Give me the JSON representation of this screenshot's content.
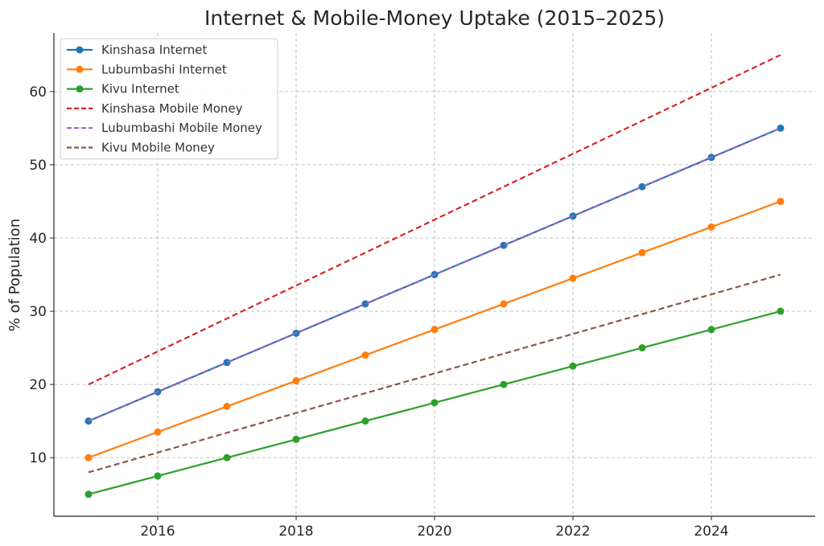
{
  "chart_data": {
    "type": "line",
    "title": "Internet & Mobile-Money Uptake (2015–2025)",
    "xlabel": "",
    "ylabel": "% of Population",
    "x": [
      2015,
      2016,
      2017,
      2018,
      2019,
      2020,
      2021,
      2022,
      2023,
      2024,
      2025
    ],
    "xlim": [
      2014.5,
      2025.5
    ],
    "ylim": [
      2.0,
      68.0
    ],
    "xticks": [
      2016,
      2018,
      2020,
      2022,
      2024
    ],
    "yticks": [
      10,
      20,
      30,
      40,
      50,
      60
    ],
    "grid": true,
    "legend_position": "top-left",
    "series": [
      {
        "name": "Kinshasa Internet",
        "color": "#1f77b4",
        "style": "solid",
        "marker": "circle",
        "values": [
          15,
          19,
          23,
          27,
          31,
          35,
          39,
          43,
          47,
          51,
          55
        ]
      },
      {
        "name": "Lubumbashi Internet",
        "color": "#ff7f0e",
        "style": "solid",
        "marker": "circle",
        "values": [
          10,
          13.5,
          17,
          20.5,
          24,
          27.5,
          31,
          34.5,
          38,
          41.5,
          45
        ]
      },
      {
        "name": "Kivu Internet",
        "color": "#2ca02c",
        "style": "solid",
        "marker": "circle",
        "values": [
          5,
          7.5,
          10,
          12.5,
          15,
          17.5,
          20,
          22.5,
          25,
          27.5,
          30
        ]
      },
      {
        "name": "Kinshasa Mobile Money",
        "color": "#d62728",
        "style": "dashed",
        "marker": "none",
        "values": [
          20,
          24.5,
          29,
          33.5,
          38,
          42.5,
          47,
          51.5,
          56,
          60.5,
          65
        ]
      },
      {
        "name": "Lubumbashi Mobile Money",
        "color": "#9467bd",
        "style": "dashed",
        "marker": "none",
        "values": [
          15,
          19,
          23,
          27,
          31,
          35,
          39,
          43,
          47,
          51,
          55
        ]
      },
      {
        "name": "Kivu Mobile Money",
        "color": "#8c564b",
        "style": "dashed",
        "marker": "none",
        "values": [
          8,
          10.7,
          13.4,
          16.1,
          18.8,
          21.5,
          24.2,
          26.9,
          29.6,
          32.3,
          35
        ]
      }
    ]
  }
}
